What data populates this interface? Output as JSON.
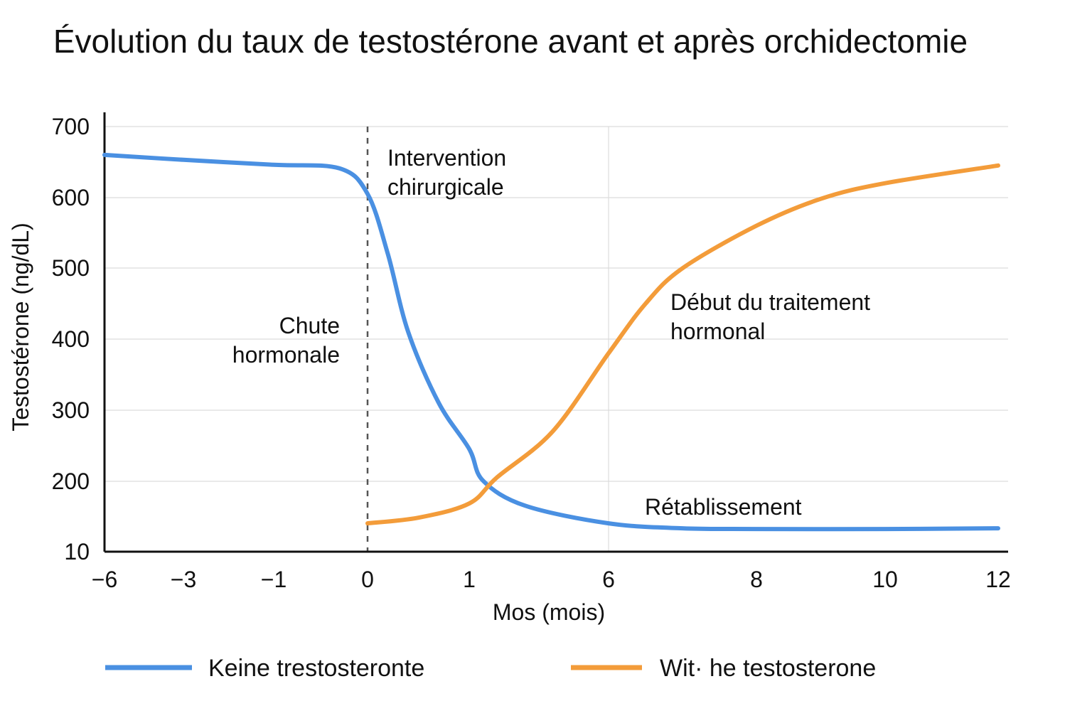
{
  "chart_data": {
    "type": "line",
    "title": "Évolution du taux de testostérone avant et après orchidectomie",
    "xlabel": "Mos (mois)",
    "ylabel": "Testostérone (ng/dL)",
    "x_ticks": [
      "−6",
      "−3",
      "−1",
      "0",
      "1",
      "6",
      "8",
      "10",
      "12"
    ],
    "y_ticks": [
      "10",
      "200",
      "300",
      "400",
      "500",
      "600",
      "700"
    ],
    "ylim": [
      100,
      700
    ],
    "grid": true,
    "legend_position": "bottom",
    "series": [
      {
        "name": "Keine trestosteronte",
        "color": "#4a90e2",
        "points": [
          {
            "x": -6,
            "y": 660
          },
          {
            "x": -3,
            "y": 653
          },
          {
            "x": -1,
            "y": 646
          },
          {
            "x": -0.3,
            "y": 641
          },
          {
            "x": 0,
            "y": 605
          },
          {
            "x": 0.2,
            "y": 520
          },
          {
            "x": 0.4,
            "y": 410
          },
          {
            "x": 0.7,
            "y": 310
          },
          {
            "x": 1,
            "y": 245
          },
          {
            "x": 1.5,
            "y": 200
          },
          {
            "x": 3,
            "y": 165
          },
          {
            "x": 6,
            "y": 140
          },
          {
            "x": 7,
            "y": 133
          },
          {
            "x": 8,
            "y": 132
          },
          {
            "x": 10,
            "y": 132
          },
          {
            "x": 12,
            "y": 133
          }
        ]
      },
      {
        "name": "Wit· he testosterone",
        "color": "#f39c3a",
        "points": [
          {
            "x": 0,
            "y": 140
          },
          {
            "x": 0.5,
            "y": 148
          },
          {
            "x": 1,
            "y": 168
          },
          {
            "x": 2,
            "y": 205
          },
          {
            "x": 4,
            "y": 270
          },
          {
            "x": 6,
            "y": 380
          },
          {
            "x": 6.5,
            "y": 450
          },
          {
            "x": 7,
            "y": 500
          },
          {
            "x": 8,
            "y": 560
          },
          {
            "x": 9,
            "y": 598
          },
          {
            "x": 10,
            "y": 620
          },
          {
            "x": 12,
            "y": 645
          }
        ]
      }
    ],
    "markers": [
      {
        "x": 0,
        "style": "dashed"
      }
    ],
    "annotations": [
      {
        "lines": [
          "Intervention",
          "chirurgicale"
        ]
      },
      {
        "lines": [
          "Chute",
          "hormonale"
        ]
      },
      {
        "lines": [
          "Début du traitement",
          "hormonal"
        ]
      },
      {
        "lines": [
          "Rétablissement"
        ]
      }
    ]
  }
}
